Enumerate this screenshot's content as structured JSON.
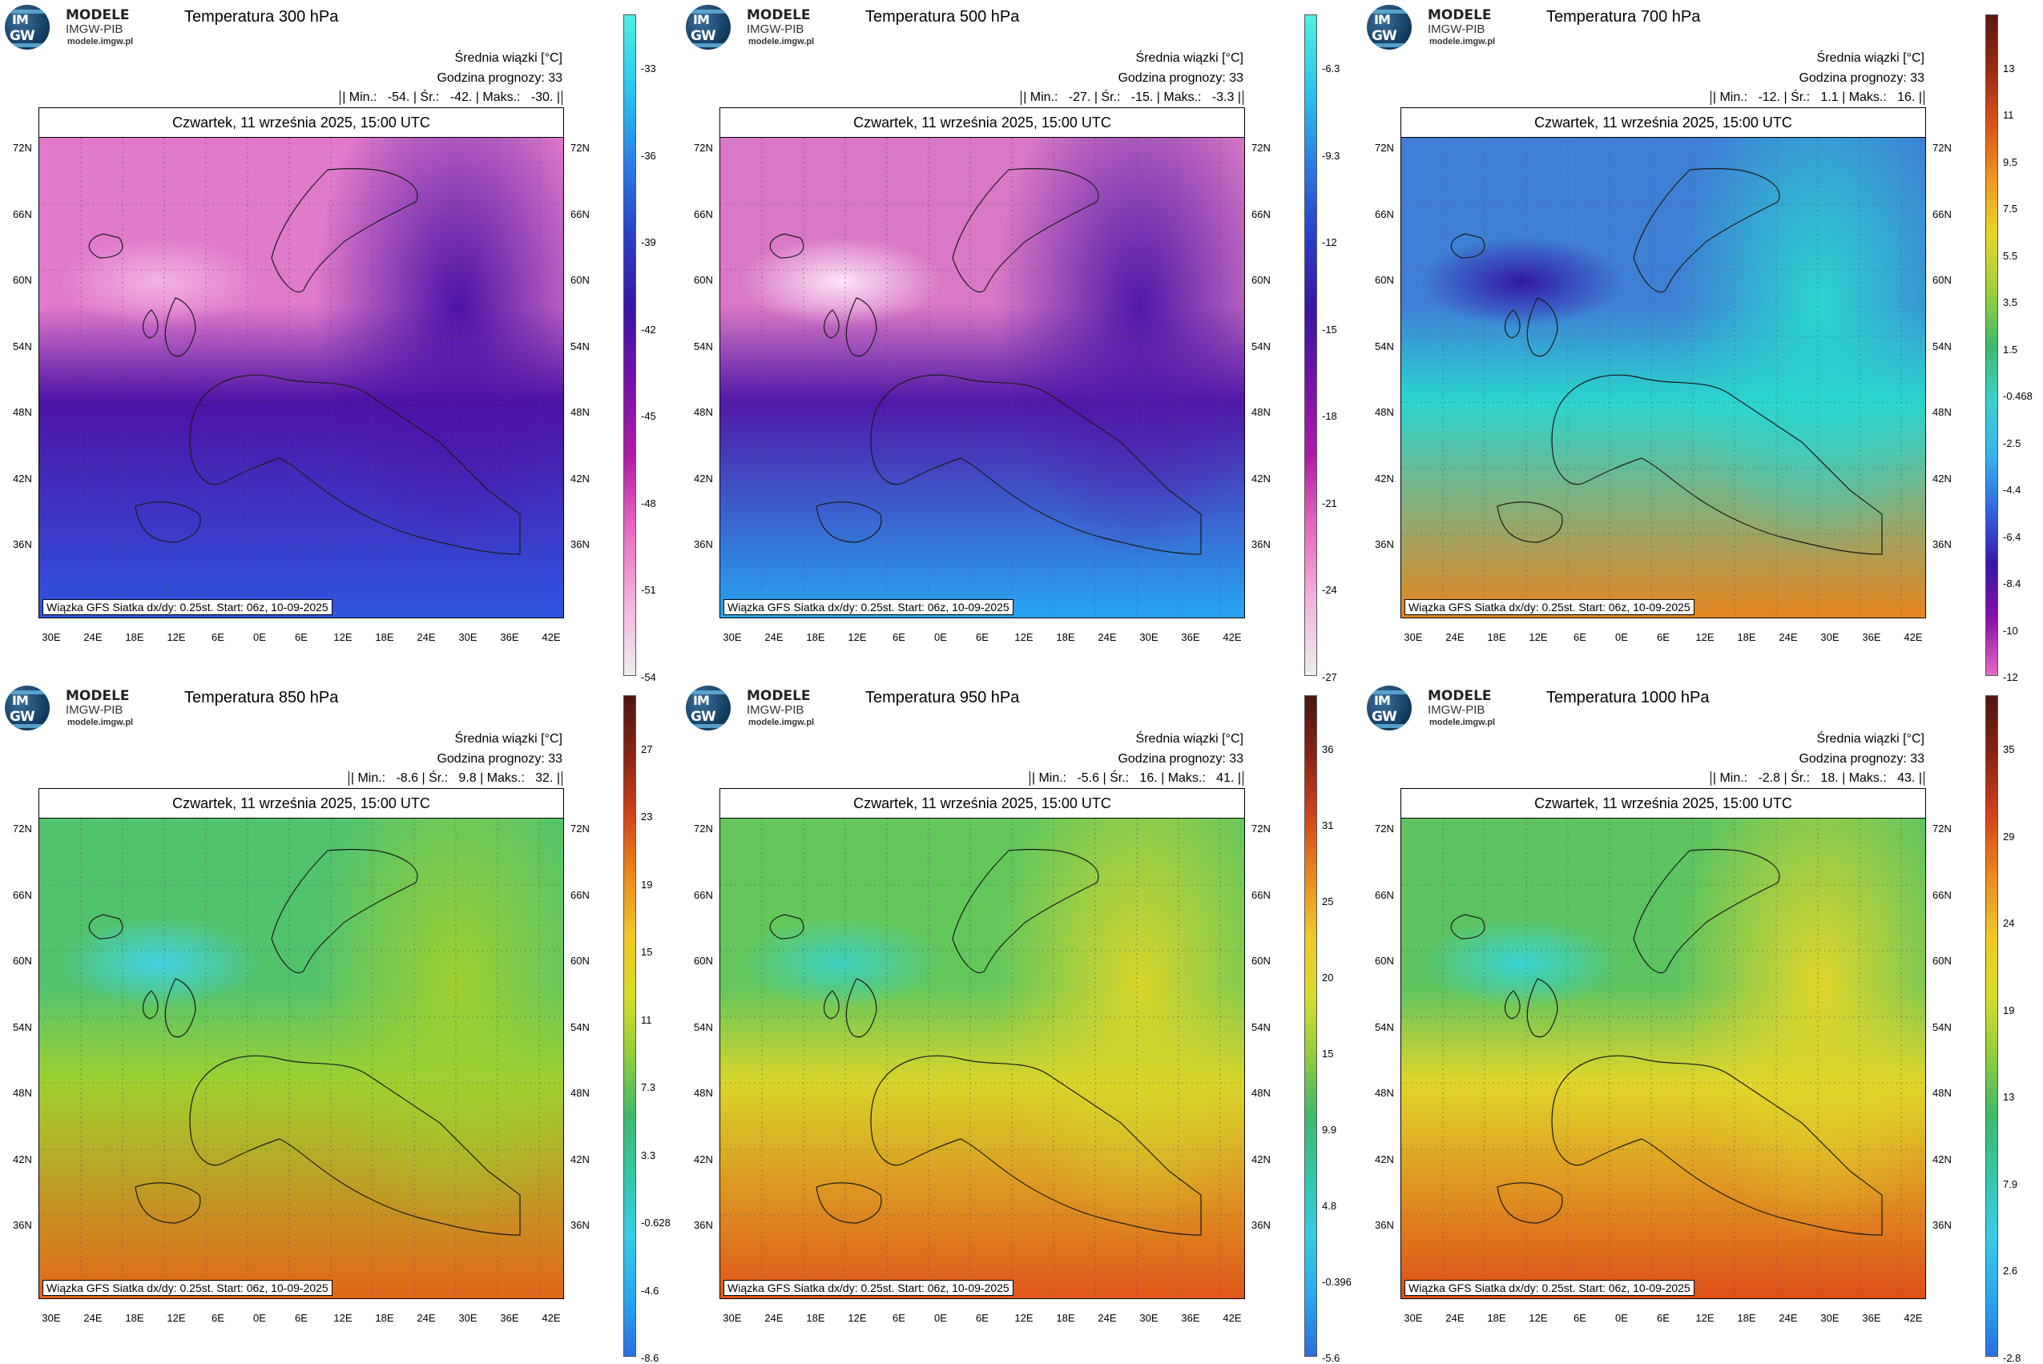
{
  "logo": {
    "mark_top": "IM",
    "mark_bottom": "GW",
    "name": "MODELE",
    "org": "IMGW-PIB",
    "url": "modele.imgw.pl"
  },
  "header": {
    "mean_label": "Średnia wiązki [°C]",
    "forecast_label": "Godzina prognozy: 33",
    "date": "Czwartek, 11 września 2025, 15:00 UTC"
  },
  "credit": "Wiązka GFS Siatka dx/dy: 0.25st. Start: 06z, 10-09-2025",
  "axes": {
    "lat_left": [
      "72N",
      "66N",
      "60N",
      "54N",
      "48N",
      "42N",
      "36N"
    ],
    "lat_right": [
      "72N",
      "66N",
      "60N",
      "54N",
      "48N",
      "42N",
      "36N"
    ],
    "lon": [
      "30E",
      "24E",
      "18E",
      "12E",
      "6E",
      "0E",
      "6E",
      "12E",
      "18E",
      "24E",
      "30E",
      "36E",
      "42E"
    ]
  },
  "panels": [
    {
      "title": "Temperatura 300 hPa",
      "stats": "| Min.:   -54. | Śr.:   -42. | Maks.:   -30. |",
      "colorbar": [
        "-33",
        "-36",
        "-39",
        "-42",
        "-45",
        "-48",
        "-51",
        "-54"
      ],
      "palette": "cold",
      "field_colors": {
        "top": "#e07acb",
        "mid": "#4d12a6",
        "bottom": "#2f55e0",
        "accent": "#f2b3e2"
      }
    },
    {
      "title": "Temperatura 500 hPa",
      "stats": "| Min.:   -27. | Śr.:   -15. | Maks.:   -3.3 |",
      "colorbar": [
        "-6.3",
        "-9.3",
        "-12",
        "-15",
        "-18",
        "-21",
        "-24",
        "-27"
      ],
      "palette": "cold",
      "field_colors": {
        "top": "#d978c6",
        "mid": "#5018a8",
        "bottom": "#27a6f2",
        "accent": "#fde4f7"
      }
    },
    {
      "title": "Temperatura 700 hPa",
      "stats": "| Min.:   -12. | Śr.:   1.1 | Maks.:   16. |",
      "colorbar": [
        "13",
        "11",
        "9.5",
        "7.5",
        "5.5",
        "3.5",
        "1.5",
        "-0.468",
        "-2.5",
        "-4.4",
        "-6.4",
        "-8.4",
        "-10",
        "-12"
      ],
      "palette": "full",
      "field_colors": {
        "top": "#3f7fd6",
        "mid": "#2ad5cf",
        "bottom": "#e7851e",
        "accent": "#3219a3"
      }
    },
    {
      "title": "Temperatura 850 hPa",
      "stats": "| Min.:   -8.6 | Śr.:   9.8 | Maks.:   32. |",
      "colorbar": [
        "27",
        "23",
        "19",
        "15",
        "11",
        "7.3",
        "3.3",
        "-0.628",
        "-4.6",
        "-8.6"
      ],
      "palette": "warm",
      "field_colors": {
        "top": "#52c36d",
        "mid": "#9fd02f",
        "bottom": "#e1661a",
        "accent": "#42d2e3"
      }
    },
    {
      "title": "Temperatura 950 hPa",
      "stats": "| Min.:   -5.6 | Śr.:   16. | Maks.:   41. |",
      "colorbar": [
        "36",
        "31",
        "25",
        "20",
        "15",
        "9.9",
        "4.8",
        "-0.396",
        "-5.6"
      ],
      "palette": "warm",
      "field_colors": {
        "top": "#63c75c",
        "mid": "#d8d52a",
        "bottom": "#e0571a",
        "accent": "#3cd0bf"
      }
    },
    {
      "title": "Temperatura 1000 hPa",
      "stats": "| Min.:   -2.8 | Śr.:   18. | Maks.:   43. |",
      "colorbar": [
        "35",
        "29",
        "24",
        "19",
        "13",
        "7.9",
        "2.6",
        "-2.8"
      ],
      "palette": "warm",
      "field_colors": {
        "top": "#5dc460",
        "mid": "#e0d62a",
        "bottom": "#de4f18",
        "accent": "#38d3d3"
      }
    }
  ],
  "palettes": {
    "cold": [
      "#4ef0e0",
      "#2bc6f0",
      "#2b7fe6",
      "#2940c8",
      "#3a14a6",
      "#7612a8",
      "#b01aa6",
      "#e86ac0",
      "#f4b3df",
      "#eeeeee"
    ],
    "full": [
      "#5b1711",
      "#9a2c14",
      "#d8541a",
      "#ef9a1f",
      "#e8d52b",
      "#9fcf39",
      "#3fb86a",
      "#3ad0c9",
      "#38b3ee",
      "#3366dd",
      "#3a14a6",
      "#8a12a8",
      "#e46ac4"
    ],
    "warm": [
      "#4d1710",
      "#8a2413",
      "#d2441a",
      "#ea8a1e",
      "#f0c728",
      "#d8dc2c",
      "#8fcd3c",
      "#3fb86a",
      "#34c6a9",
      "#38cbe6",
      "#2aa7ef",
      "#2b6fe0"
    ]
  }
}
